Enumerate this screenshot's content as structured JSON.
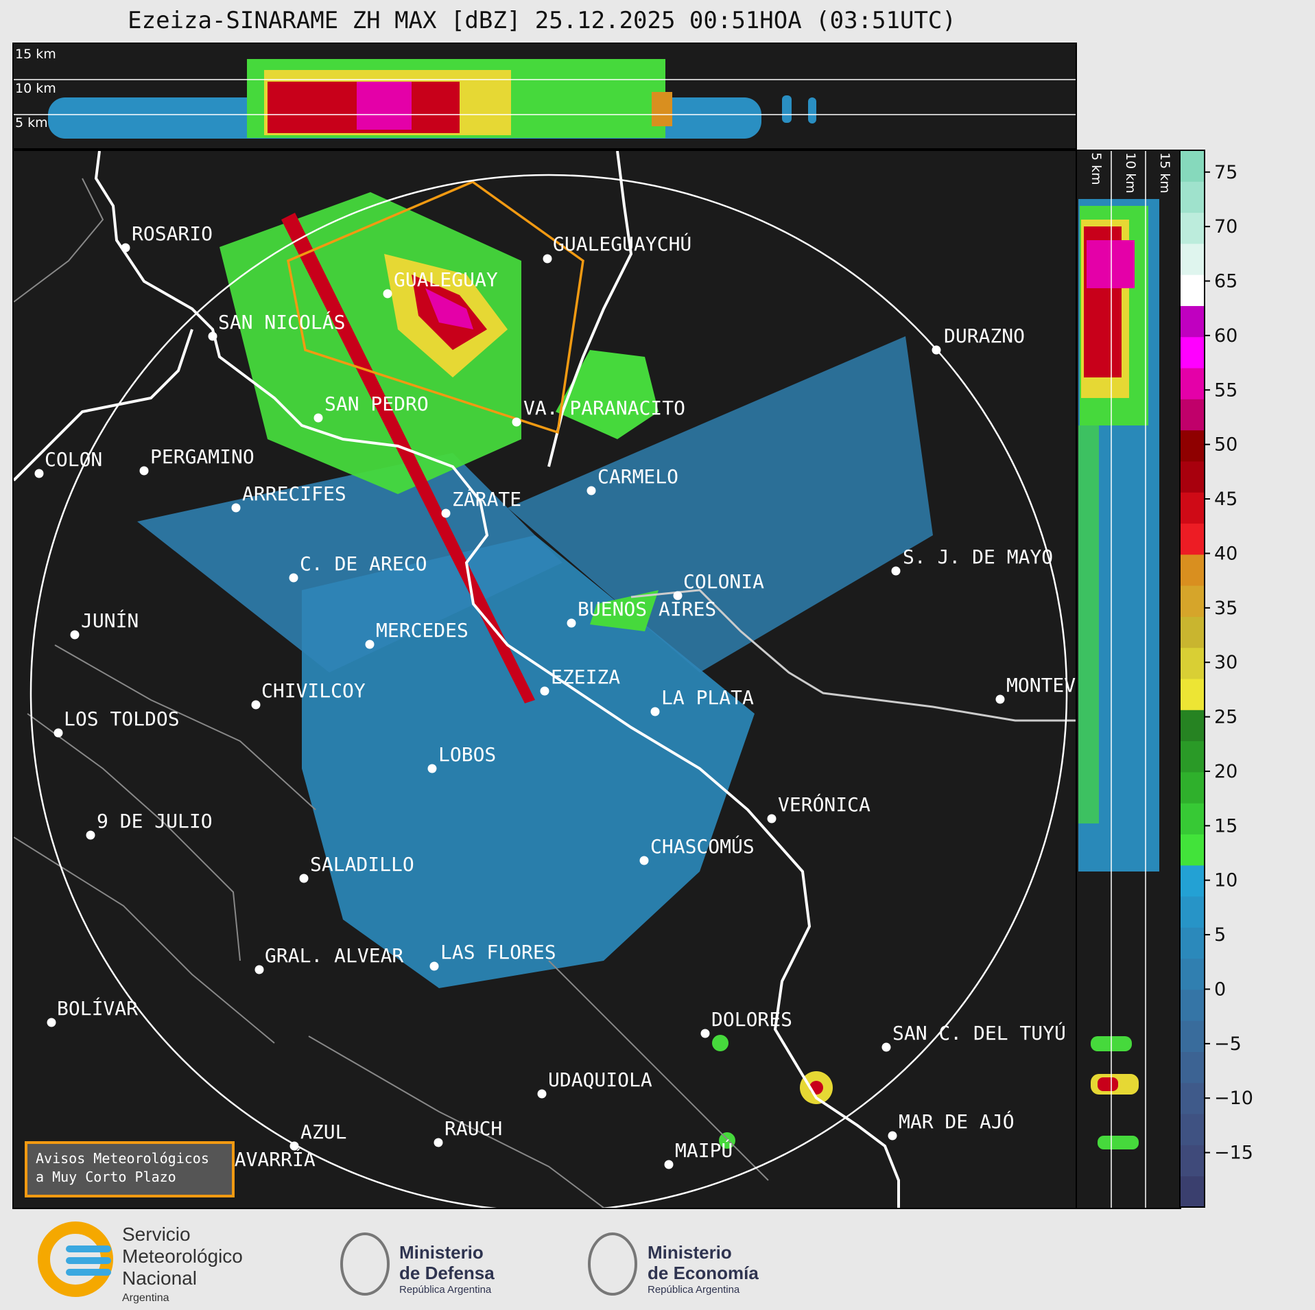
{
  "title": "Ezeiza-SINARAME ZH MAX [dBZ] 25.12.2025 00:51HOA (03:51UTC)",
  "top_panel": {
    "height_labels": [
      "15 km",
      "10 km",
      "5 km"
    ]
  },
  "right_panel": {
    "height_labels": [
      "5 km",
      "10 km",
      "15 km"
    ]
  },
  "colorbar": {
    "ticks": [
      "75",
      "70",
      "65",
      "60",
      "55",
      "50",
      "45",
      "40",
      "35",
      "30",
      "25",
      "20",
      "15",
      "10",
      "5",
      "0",
      "−5",
      "−10",
      "−15"
    ],
    "range": [
      -20,
      77
    ],
    "colors": [
      "#3a3f6e",
      "#3f4a7a",
      "#3f5282",
      "#3f5a8a",
      "#3c6393",
      "#396c9c",
      "#3575a6",
      "#307fb0",
      "#2b89bb",
      "#2794c7",
      "#23a1d4",
      "#42e33a",
      "#37c935",
      "#2fb02c",
      "#2a9a27",
      "#268322",
      "#ede534",
      "#d9cf34",
      "#c9b52f",
      "#d6a52a",
      "#d98f1f",
      "#ed1c24",
      "#cf0a16",
      "#a8000d",
      "#8f0000",
      "#c0006a",
      "#e400a8",
      "#ff00ff",
      "#c000c0",
      "#ffffff",
      "#dff5ee",
      "#bcecdc",
      "#9fe2cc",
      "#86d9bc"
    ]
  },
  "cities": [
    {
      "name": "ROSARIO"
    },
    {
      "name": "GUALEGUAYCHÚ"
    },
    {
      "name": "GUALEGUAY"
    },
    {
      "name": "SAN NICOLÁS"
    },
    {
      "name": "DURAZNO"
    },
    {
      "name": "SAN PEDRO"
    },
    {
      "name": "VA. PARANACITO"
    },
    {
      "name": "COLON"
    },
    {
      "name": "PERGAMINO"
    },
    {
      "name": "CARMELO"
    },
    {
      "name": "ARRECIFES"
    },
    {
      "name": "ZÁRATE"
    },
    {
      "name": "S. J. DE MAYO"
    },
    {
      "name": "C. DE ARECO"
    },
    {
      "name": "COLONIA"
    },
    {
      "name": "JUNÍN"
    },
    {
      "name": "BUENOS AIRES"
    },
    {
      "name": "MERCEDES"
    },
    {
      "name": "EZEIZA"
    },
    {
      "name": "MONTEVIDEO"
    },
    {
      "name": "CHIVILCOY"
    },
    {
      "name": "LA PLATA"
    },
    {
      "name": "LOS TOLDOS"
    },
    {
      "name": "LOBOS"
    },
    {
      "name": "VERÓNICA"
    },
    {
      "name": "9 DE JULIO"
    },
    {
      "name": "CHASCOMÚS"
    },
    {
      "name": "SALADILLO"
    },
    {
      "name": "GRAL. ALVEAR"
    },
    {
      "name": "LAS FLORES"
    },
    {
      "name": "BOLÍVAR"
    },
    {
      "name": "DOLORES"
    },
    {
      "name": "SAN C. DEL TUYÚ"
    },
    {
      "name": "UDAQUIOLA"
    },
    {
      "name": "MAR DE AJÓ"
    },
    {
      "name": "AZUL"
    },
    {
      "name": "RAUCH"
    },
    {
      "name": "OLAVARRÍA"
    },
    {
      "name": "MAIPÚ"
    }
  ],
  "avisos": {
    "line1": "Avisos Meteorológicos",
    "line2": "a Muy Corto Plazo"
  },
  "logos": {
    "smn": {
      "line1": "Servicio",
      "line2": "Meteorológico",
      "line3": "Nacional",
      "line4": "Argentina"
    },
    "defensa": {
      "line1": "Ministerio",
      "line2": "de Defensa",
      "line3": "República Argentina"
    },
    "economia": {
      "line1": "Ministerio",
      "line2": "de Economía",
      "line3": "República Argentina"
    }
  }
}
